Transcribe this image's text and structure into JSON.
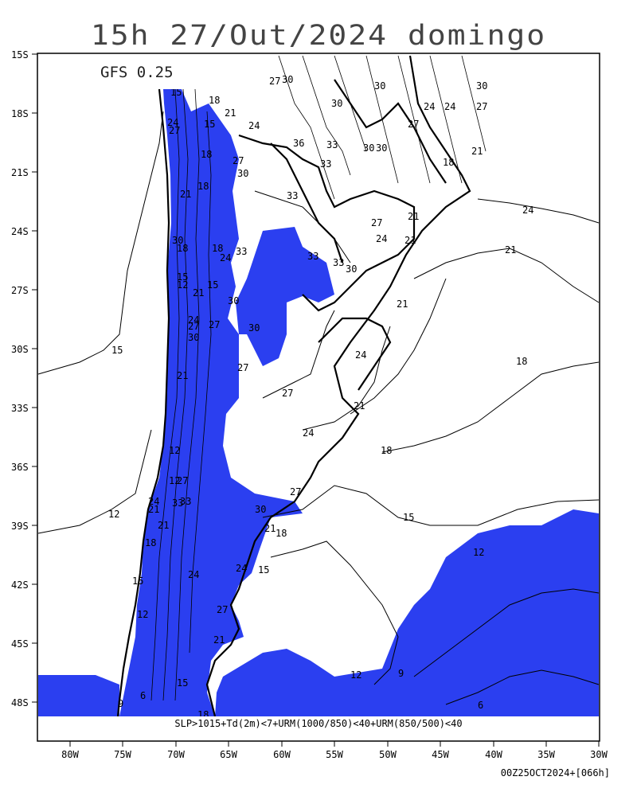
{
  "title": "15h 27/Out/2024 domingo",
  "model_label": "GFS 0.25",
  "criteria": "SLP>1015+Td(2m)<7+URM(1000/850)<40+URM(850/500)<40",
  "run_stamp": "00Z25OCT2024+[066h]",
  "colors": {
    "highlight": "#2b3ff0",
    "contour": "#000000",
    "background": "#ffffff"
  },
  "lat_ticks": [
    "15S",
    "18S",
    "21S",
    "24S",
    "27S",
    "30S",
    "33S",
    "36S",
    "39S",
    "42S",
    "45S",
    "48S"
  ],
  "lon_ticks": [
    "80W",
    "75W",
    "70W",
    "65W",
    "60W",
    "55W",
    "50W",
    "45W",
    "40W",
    "35W",
    "30W"
  ],
  "contour_labels": [
    "15",
    "18",
    "21",
    "24",
    "27",
    "30",
    "33",
    "12",
    "9",
    "6"
  ]
}
